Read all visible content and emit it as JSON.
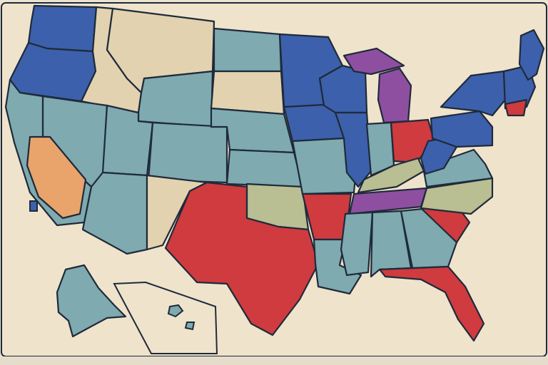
{
  "colors": {
    "background": "#ece3d3",
    "paper": "#efe3cc",
    "stroke": "#1f2a3a",
    "teal": "#7eaab0",
    "blue": "#3c60ab",
    "red": "#cf3b3f",
    "tan": "#e2d2b0",
    "purple": "#8e4fa1",
    "olive": "#b9be93",
    "orange": "#e9a46c",
    "pink": "#d86a7e"
  },
  "map": {
    "regions": [
      {
        "name": "washington",
        "fill": "blue"
      },
      {
        "name": "oregon",
        "fill": "blue"
      },
      {
        "name": "idaho",
        "fill": "tan"
      },
      {
        "name": "montana",
        "fill": "tan"
      },
      {
        "name": "wyoming",
        "fill": "teal"
      },
      {
        "name": "nevada",
        "fill": "teal"
      },
      {
        "name": "california",
        "fill": "teal"
      },
      {
        "name": "california-south",
        "fill": "orange"
      },
      {
        "name": "utah",
        "fill": "teal"
      },
      {
        "name": "arizona",
        "fill": "teal"
      },
      {
        "name": "colorado",
        "fill": "teal"
      },
      {
        "name": "new-mexico",
        "fill": "tan"
      },
      {
        "name": "north-dakota",
        "fill": "teal"
      },
      {
        "name": "south-dakota",
        "fill": "tan"
      },
      {
        "name": "nebraska",
        "fill": "teal"
      },
      {
        "name": "kansas",
        "fill": "teal"
      },
      {
        "name": "oklahoma",
        "fill": "olive"
      },
      {
        "name": "texas",
        "fill": "red"
      },
      {
        "name": "minnesota",
        "fill": "blue"
      },
      {
        "name": "iowa",
        "fill": "blue"
      },
      {
        "name": "missouri",
        "fill": "teal"
      },
      {
        "name": "arkansas",
        "fill": "red"
      },
      {
        "name": "louisiana",
        "fill": "teal"
      },
      {
        "name": "wisconsin",
        "fill": "blue"
      },
      {
        "name": "illinois",
        "fill": "blue"
      },
      {
        "name": "michigan-upper",
        "fill": "purple"
      },
      {
        "name": "michigan",
        "fill": "purple"
      },
      {
        "name": "indiana",
        "fill": "teal"
      },
      {
        "name": "ohio",
        "fill": "red"
      },
      {
        "name": "kentucky",
        "fill": "olive"
      },
      {
        "name": "tennessee",
        "fill": "purple"
      },
      {
        "name": "mississippi",
        "fill": "teal"
      },
      {
        "name": "alabama",
        "fill": "teal"
      },
      {
        "name": "georgia",
        "fill": "teal"
      },
      {
        "name": "florida",
        "fill": "red"
      },
      {
        "name": "south-carolina",
        "fill": "red"
      },
      {
        "name": "north-carolina",
        "fill": "olive"
      },
      {
        "name": "virginia",
        "fill": "teal"
      },
      {
        "name": "west-virginia",
        "fill": "blue"
      },
      {
        "name": "pennsylvania",
        "fill": "blue"
      },
      {
        "name": "new-york",
        "fill": "blue"
      },
      {
        "name": "new-england",
        "fill": "blue"
      },
      {
        "name": "maine",
        "fill": "blue"
      },
      {
        "name": "new-jersey",
        "fill": "red"
      },
      {
        "name": "alaska",
        "fill": "teal"
      }
    ]
  }
}
